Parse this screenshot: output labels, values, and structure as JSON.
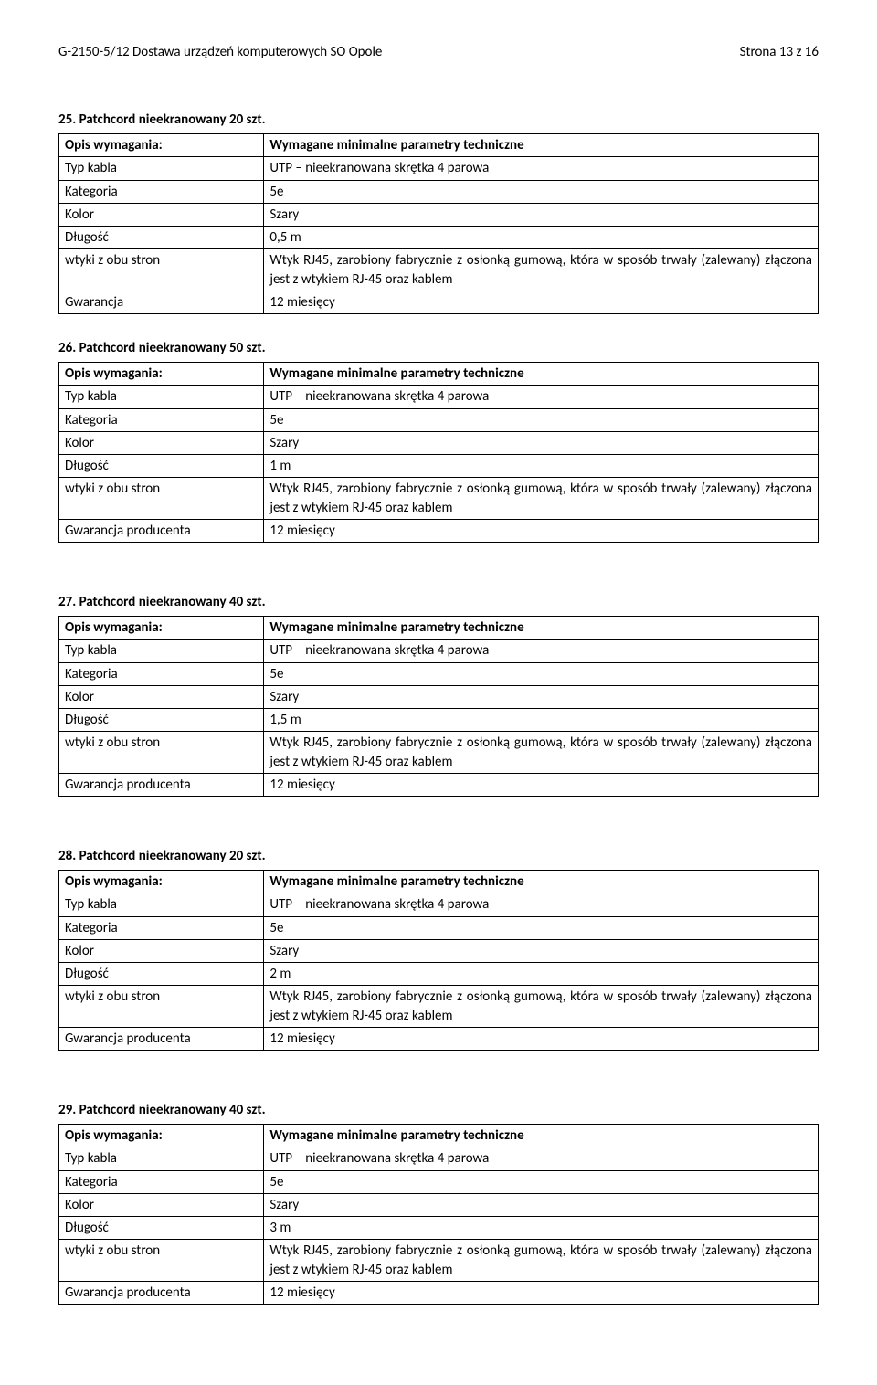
{
  "header": {
    "left": "G-2150-5/12 Dostawa urządzeń komputerowych SO Opole",
    "right": "Strona 13 z 16"
  },
  "labels": {
    "opis": "Opis wymagania:",
    "wymagane": "Wymagane minimalne parametry techniczne",
    "typ_kabla": "Typ kabla",
    "kategoria": "Kategoria",
    "kolor": "Kolor",
    "dlugosc": "Długość",
    "wtyki": "wtyki z obu stron",
    "gwarancja": "Gwarancja",
    "gwarancja_prod": "Gwarancja producenta"
  },
  "values": {
    "typ_kabla": "UTP – nieekranowana skrętka 4 parowa",
    "kategoria": "5e",
    "kolor": "Szary",
    "wtyki": "Wtyk RJ45, zarobiony fabrycznie z osłonką gumową, która w sposób trwały (zalewany) złączona jest z wtykiem RJ-45 oraz kablem",
    "gwarancja": "12 miesięcy"
  },
  "sections": {
    "s25": {
      "heading": "25. Patchcord nieekranowany 20 szt.",
      "dlugosc": "0,5 m",
      "gwar_label_key": "gwarancja"
    },
    "s26": {
      "heading": "26. Patchcord nieekranowany 50 szt.",
      "dlugosc": "1 m",
      "gwar_label_key": "gwarancja_prod"
    },
    "s27": {
      "heading": "27. Patchcord nieekranowany 40 szt.",
      "dlugosc": "1,5 m",
      "gwar_label_key": "gwarancja_prod"
    },
    "s28": {
      "heading": "28. Patchcord nieekranowany 20 szt.",
      "dlugosc": "2 m",
      "gwar_label_key": "gwarancja_prod"
    },
    "s29": {
      "heading": "29. Patchcord nieekranowany 40 szt.",
      "dlugosc": "3 m",
      "gwar_label_key": "gwarancja_prod"
    }
  }
}
